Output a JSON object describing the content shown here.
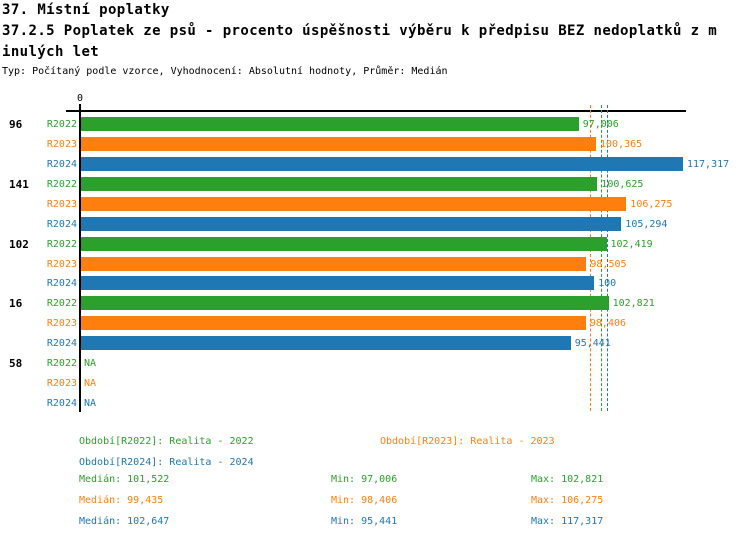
{
  "header": {
    "lines": [
      "37. Místní poplatky",
      "37.2.5 Poplatek ze psů - procento úspěšnosti výběru k předpisu BEZ nedoplatků z m",
      "inulých let",
      "Typ: Počítaný podle vzorce, Vyhodnocení: Absolutní hodnoty, Průměr: Medián"
    ]
  },
  "colors": {
    "r2022_green": "#2ca02c",
    "r2023_orange": "#ff7f0e",
    "r2024_blue": "#1f77b4",
    "axis_black": "#000000"
  },
  "chart_data": {
    "type": "bar",
    "orientation": "horizontal",
    "grid": false,
    "x_axis": {
      "zero_label": "0",
      "min": 0,
      "max": 118.2
    },
    "categories": [
      "96",
      "141",
      "102",
      "16",
      "58"
    ],
    "series": [
      {
        "name": "R2022",
        "color": "#2ca02c",
        "values": [
          97.006,
          100.625,
          102.419,
          102.821,
          null
        ],
        "value_labels": [
          "97,006",
          "100,625",
          "102,419",
          "102,821",
          "NA"
        ],
        "median": 101.522,
        "min": 97.006,
        "max": 102.821
      },
      {
        "name": "R2023",
        "color": "#ff7f0e",
        "values": [
          100.365,
          106.275,
          98.505,
          98.406,
          null
        ],
        "value_labels": [
          "100,365",
          "106,275",
          "98,505",
          "98,406",
          "NA"
        ],
        "median": 99.435,
        "min": 98.406,
        "max": 106.275
      },
      {
        "name": "R2024",
        "color": "#1f77b4",
        "values": [
          117.317,
          105.294,
          100,
          95.441,
          null
        ],
        "value_labels": [
          "117,317",
          "105,294",
          "100",
          "95,441",
          "NA"
        ],
        "median": 102.647,
        "min": 95.441,
        "max": 117.317
      }
    ],
    "median_lines_dashed": true,
    "legend_position": "bottom"
  },
  "legend": {
    "items": [
      {
        "text": "Období[R2022]: Realita - 2022",
        "color": "#2ca02c"
      },
      {
        "text": "Období[R2023]: Realita - 2023",
        "color": "#ff7f0e"
      },
      {
        "text": "Období[R2024]: Realita - 2024",
        "color": "#1f77b4"
      }
    ],
    "stats": [
      {
        "color": "#2ca02c",
        "median": "Medián: 101,522",
        "min": "Min: 97,006",
        "max": "Max: 102,821"
      },
      {
        "color": "#ff7f0e",
        "median": "Medián: 99,435",
        "min": "Min: 98,406",
        "max": "Max: 106,275"
      },
      {
        "color": "#1f77b4",
        "median": "Medián: 102,647",
        "min": "Min: 95,441",
        "max": "Max: 117,317"
      }
    ]
  }
}
